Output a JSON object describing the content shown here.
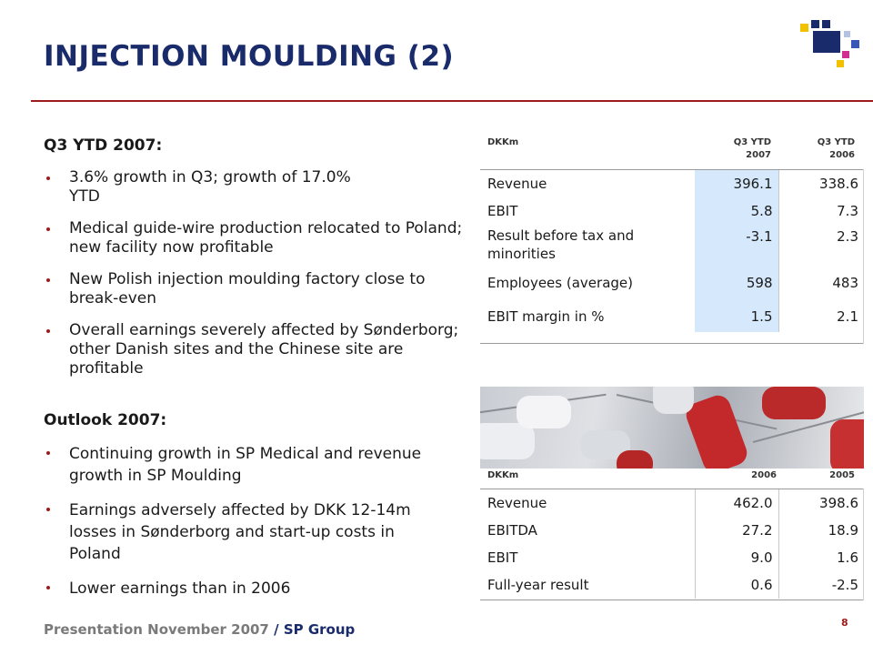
{
  "title": "INJECTION MOULDING (2)",
  "left": {
    "q3_heading": "Q3 YTD 2007:",
    "q3_bullets": [
      "3.6% growth in Q3; growth of 17.0% YTD",
      "Medical guide-wire production relocated to Poland; new facility now profitable",
      "New Polish injection moulding factory close to break-even",
      "Overall earnings severely affected by Sønderborg; other Danish sites and the Chinese site are profitable"
    ],
    "outlook_heading": "Outlook 2007:",
    "outlook_bullets": [
      "Continuing growth in SP Medical and revenue growth in SP Moulding",
      "Earnings adversely affected by DKK 12-14m losses in Sønderborg and start-up costs in Poland",
      "Lower earnings than in 2006"
    ]
  },
  "table1": {
    "unit": "DKKm",
    "col1": "Q3 YTD\n2007",
    "col2": "Q3 YTD\n2006",
    "rows": [
      {
        "label": "Revenue",
        "v1": "396.1",
        "v2": "338.6"
      },
      {
        "label": "EBIT",
        "v1": "5.8",
        "v2": "7.3"
      },
      {
        "label": "Result before tax and minorities",
        "v1": "-3.1",
        "v2": "2.3"
      },
      {
        "label": "Employees (average)",
        "v1": "598",
        "v2": "483"
      },
      {
        "label": "EBIT margin in %",
        "v1": "1.5",
        "v2": "2.1"
      }
    ]
  },
  "table2": {
    "unit": "DKKm",
    "col1": "2006",
    "col2": "2005",
    "rows": [
      {
        "label": "Revenue",
        "v1": "462.0",
        "v2": "398.6"
      },
      {
        "label": "EBITDA",
        "v1": "27.2",
        "v2": "18.9"
      },
      {
        "label": "EBIT",
        "v1": "9.0",
        "v2": "1.6"
      },
      {
        "label": "Full-year result",
        "v1": "0.6",
        "v2": "-2.5"
      }
    ]
  },
  "footer": {
    "presentation": "Presentation November 2007",
    "separator": " / ",
    "group": "SP Group",
    "page": "8"
  },
  "colors": {
    "title": "#1a2b6b",
    "rule": "#9e1b1b",
    "highlight": "#d6e8fb"
  }
}
